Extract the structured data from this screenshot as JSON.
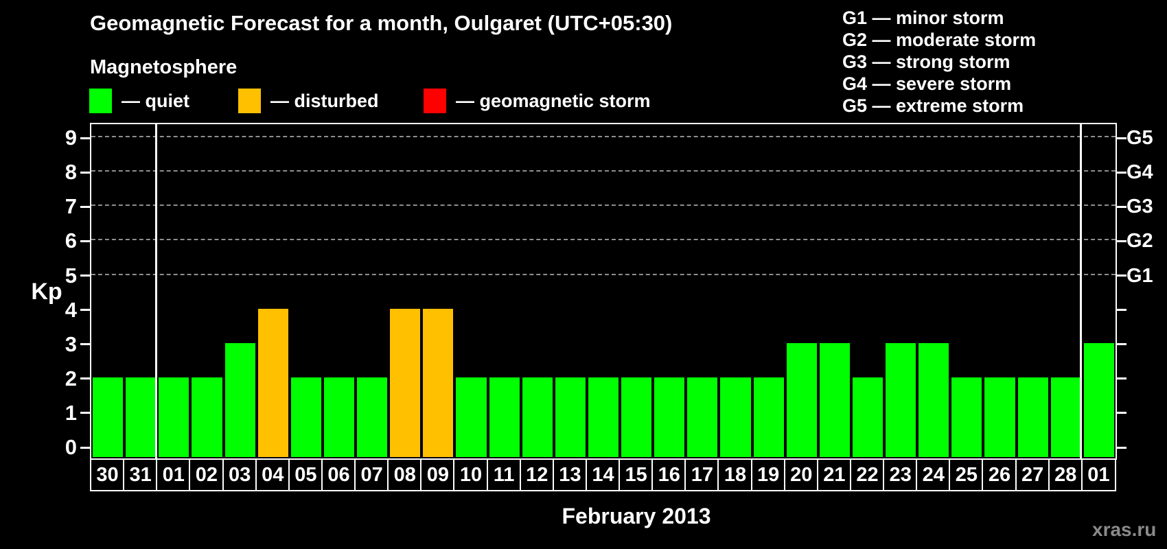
{
  "title": "Geomagnetic Forecast for a month, Oulgaret (UTC+05:30)",
  "subtitle": "Magnetosphere",
  "colors": {
    "quiet": "#00ff00",
    "disturbed": "#ffc000",
    "storm": "#ff0000",
    "axis": "#ffffff",
    "gridline": "#8f8f8f",
    "watermark_gray": "#8a8a8a",
    "background": "#000000"
  },
  "legend": {
    "items": [
      {
        "state": "quiet",
        "label": "— quiet"
      },
      {
        "state": "disturbed",
        "label": "— disturbed"
      },
      {
        "state": "storm",
        "label": "— geomagnetic storm"
      }
    ]
  },
  "g_scale_legend": [
    "G1 — minor storm",
    "G2 — moderate storm",
    "G3 — strong storm",
    "G4 — severe storm",
    "G5 — extreme storm"
  ],
  "y_axis": {
    "label": "Kp",
    "ticks": [
      0,
      1,
      2,
      3,
      4,
      5,
      6,
      7,
      8,
      9
    ]
  },
  "right_axis": {
    "labels": [
      {
        "text": "G1",
        "kp": 5
      },
      {
        "text": "G2",
        "kp": 6
      },
      {
        "text": "G3",
        "kp": 7
      },
      {
        "text": "G4",
        "kp": 8
      },
      {
        "text": "G5",
        "kp": 9
      }
    ]
  },
  "x_axis": {
    "label": "February 2013"
  },
  "watermark": "xras.ru",
  "chart_data": {
    "type": "bar",
    "title": "Geomagnetic Forecast for a month, Oulgaret (UTC+05:30)",
    "xlabel": "February 2013",
    "ylabel": "Kp",
    "ylim": [
      0,
      9
    ],
    "grid_levels": [
      5,
      6,
      7,
      8,
      9
    ],
    "legend_position": "top-left",
    "categories": [
      "30",
      "31",
      "01",
      "02",
      "03",
      "04",
      "05",
      "06",
      "07",
      "08",
      "09",
      "10",
      "11",
      "12",
      "13",
      "14",
      "15",
      "16",
      "17",
      "18",
      "19",
      "20",
      "21",
      "22",
      "23",
      "24",
      "25",
      "26",
      "27",
      "28",
      "01"
    ],
    "values": [
      2,
      2,
      2,
      2,
      3,
      4,
      2,
      2,
      2,
      4,
      4,
      2,
      2,
      2,
      2,
      2,
      2,
      2,
      2,
      2,
      2,
      3,
      3,
      2,
      3,
      3,
      2,
      2,
      2,
      2,
      3
    ],
    "states": [
      "quiet",
      "quiet",
      "quiet",
      "quiet",
      "quiet",
      "disturbed",
      "quiet",
      "quiet",
      "quiet",
      "disturbed",
      "disturbed",
      "quiet",
      "quiet",
      "quiet",
      "quiet",
      "quiet",
      "quiet",
      "quiet",
      "quiet",
      "quiet",
      "quiet",
      "quiet",
      "quiet",
      "quiet",
      "quiet",
      "quiet",
      "quiet",
      "quiet",
      "quiet",
      "quiet",
      "quiet"
    ],
    "month_boundaries_after_index": [
      1,
      29
    ]
  }
}
